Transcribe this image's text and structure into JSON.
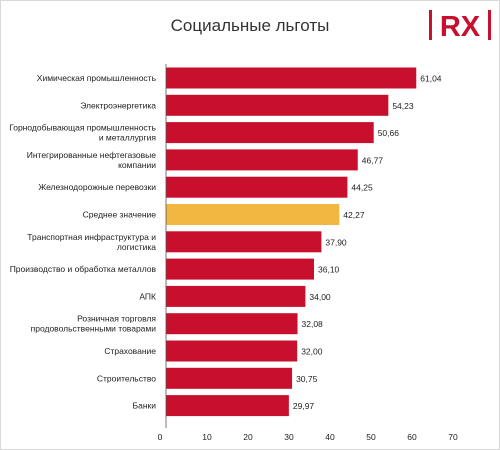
{
  "logo": {
    "text": "RX",
    "icon": "rx-logo"
  },
  "colors": {
    "bar": "#c8102e",
    "highlight": "#f2b740",
    "text": "#222222",
    "axis": "#555555"
  },
  "chart_data": {
    "type": "bar",
    "orientation": "horizontal",
    "title": "Социальные льготы",
    "categories": [
      "Химическая промышленность",
      "Электроэнергетика",
      "Горнодобывающая промышленность и металлургия",
      "Интегрированные нефтегазовые компании",
      "Железнодорожные перевозки",
      "Среднее значение",
      "Транспортная инфраструктура и логистика",
      "Производство и обработка металлов",
      "АПК",
      "Розничная торговля продовольственными товарами",
      "Страхование",
      "Строительство",
      "Банки"
    ],
    "category_lines": [
      [
        "Химическая промышленность"
      ],
      [
        "Электроэнергетика"
      ],
      [
        "Горнодобывающая промышленность",
        "и металлургия"
      ],
      [
        "Интегрированные нефтегазовые",
        "компании"
      ],
      [
        "Железнодорожные перевозки"
      ],
      [
        "Среднее значение"
      ],
      [
        "Транспортная инфраструктура и",
        "логистика"
      ],
      [
        "Производство и обработка металлов"
      ],
      [
        "АПК"
      ],
      [
        "Розничная торговля",
        "продовольственными товарами"
      ],
      [
        "Страхование"
      ],
      [
        "Строительство"
      ],
      [
        "Банки"
      ]
    ],
    "values": [
      61.04,
      54.23,
      50.66,
      46.77,
      44.25,
      42.27,
      37.9,
      36.1,
      34.0,
      32.08,
      32.0,
      30.75,
      29.97
    ],
    "value_labels": [
      "61,04",
      "54,23",
      "50,66",
      "46,77",
      "44,25",
      "42,27",
      "37,90",
      "36,10",
      "34,00",
      "32,08",
      "32,00",
      "30,75",
      "29,97"
    ],
    "highlight_index": 5,
    "xlim": [
      0,
      70
    ],
    "xticks": [
      0,
      10,
      20,
      30,
      40,
      50,
      60,
      70
    ],
    "xtick_labels": [
      "0",
      "10",
      "20",
      "30",
      "40",
      "50",
      "60",
      "70"
    ],
    "grid": false,
    "legend": "none"
  }
}
